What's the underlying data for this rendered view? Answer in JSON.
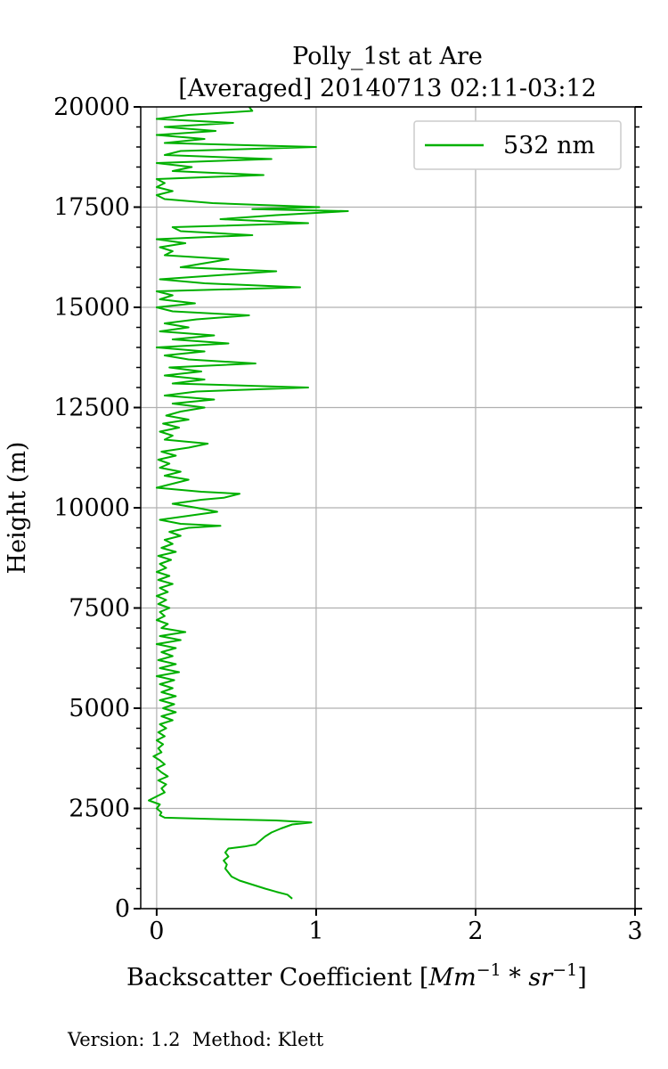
{
  "chart_data": {
    "type": "line",
    "title_line1": "Polly_1st at Are",
    "title_line2": "[Averaged] 20140713 02:11-03:12",
    "xlabel_main": "Backscatter Coefficient [",
    "xlabel_unit_mm": "Mm",
    "xlabel_exp1": "−1",
    "xlabel_star": " * ",
    "xlabel_unit_sr": "sr",
    "xlabel_exp2": "−1",
    "xlabel_close": "]",
    "ylabel": "Height (m)",
    "xlim": [
      -0.1,
      3.0
    ],
    "ylim": [
      0,
      20000
    ],
    "xticks": [
      0,
      1,
      2,
      3
    ],
    "xtick_labels": [
      "0",
      "1",
      "2",
      "3"
    ],
    "yticks": [
      0,
      2500,
      5000,
      7500,
      10000,
      12500,
      15000,
      17500,
      20000
    ],
    "ytick_labels": [
      "0",
      "2500",
      "5000",
      "7500",
      "10000",
      "12500",
      "15000",
      "17500",
      "20000"
    ],
    "grid": true,
    "legend_position": "top-right",
    "series": [
      {
        "name": "532 nm",
        "color": "#00b000",
        "points": [
          [
            0.85,
            250
          ],
          [
            0.82,
            350
          ],
          [
            0.75,
            420
          ],
          [
            0.68,
            500
          ],
          [
            0.6,
            600
          ],
          [
            0.52,
            700
          ],
          [
            0.47,
            800
          ],
          [
            0.45,
            900
          ],
          [
            0.43,
            1000
          ],
          [
            0.44,
            1100
          ],
          [
            0.42,
            1200
          ],
          [
            0.45,
            1300
          ],
          [
            0.43,
            1400
          ],
          [
            0.45,
            1500
          ],
          [
            0.55,
            1550
          ],
          [
            0.62,
            1600
          ],
          [
            0.65,
            1700
          ],
          [
            0.68,
            1800
          ],
          [
            0.72,
            1900
          ],
          [
            0.78,
            2000
          ],
          [
            0.85,
            2100
          ],
          [
            0.97,
            2150
          ],
          [
            0.75,
            2200
          ],
          [
            0.4,
            2230
          ],
          [
            0.05,
            2270
          ],
          [
            0.02,
            2330
          ],
          [
            0.03,
            2400
          ],
          [
            0.0,
            2500
          ],
          [
            0.02,
            2600
          ],
          [
            -0.05,
            2700
          ],
          [
            0.0,
            2800
          ],
          [
            0.05,
            2900
          ],
          [
            0.03,
            3000
          ],
          [
            0.06,
            3100
          ],
          [
            0.01,
            3200
          ],
          [
            0.07,
            3300
          ],
          [
            0.03,
            3400
          ],
          [
            0.0,
            3500
          ],
          [
            0.05,
            3600
          ],
          [
            0.02,
            3700
          ],
          [
            -0.02,
            3800
          ],
          [
            0.03,
            3900
          ],
          [
            0.01,
            4000
          ],
          [
            0.04,
            4100
          ],
          [
            0.0,
            4200
          ],
          [
            0.05,
            4300
          ],
          [
            0.01,
            4400
          ],
          [
            0.06,
            4500
          ],
          [
            0.02,
            4600
          ],
          [
            0.1,
            4700
          ],
          [
            0.03,
            4800
          ],
          [
            0.12,
            4900
          ],
          [
            0.04,
            5000
          ],
          [
            0.11,
            5100
          ],
          [
            0.02,
            5200
          ],
          [
            0.12,
            5300
          ],
          [
            0.03,
            5400
          ],
          [
            0.1,
            5500
          ],
          [
            0.02,
            5600
          ],
          [
            0.11,
            5700
          ],
          [
            0.0,
            5800
          ],
          [
            0.14,
            5900
          ],
          [
            0.02,
            6000
          ],
          [
            0.12,
            6100
          ],
          [
            0.01,
            6200
          ],
          [
            0.1,
            6300
          ],
          [
            0.03,
            6400
          ],
          [
            0.12,
            6500
          ],
          [
            0.0,
            6600
          ],
          [
            0.15,
            6700
          ],
          [
            0.02,
            6800
          ],
          [
            0.18,
            6900
          ],
          [
            0.03,
            7000
          ],
          [
            0.07,
            7100
          ],
          [
            0.0,
            7200
          ],
          [
            0.05,
            7300
          ],
          [
            0.02,
            7400
          ],
          [
            0.08,
            7500
          ],
          [
            0.01,
            7600
          ],
          [
            0.06,
            7700
          ],
          [
            0.0,
            7800
          ],
          [
            0.07,
            7900
          ],
          [
            0.02,
            8000
          ],
          [
            0.1,
            8100
          ],
          [
            0.01,
            8200
          ],
          [
            0.08,
            8300
          ],
          [
            0.0,
            8400
          ],
          [
            0.06,
            8500
          ],
          [
            0.02,
            8600
          ],
          [
            0.09,
            8700
          ],
          [
            0.01,
            8800
          ],
          [
            0.12,
            8900
          ],
          [
            0.03,
            9000
          ],
          [
            0.1,
            9100
          ],
          [
            0.05,
            9200
          ],
          [
            0.15,
            9300
          ],
          [
            0.08,
            9400
          ],
          [
            0.2,
            9500
          ],
          [
            0.4,
            9550
          ],
          [
            0.15,
            9600
          ],
          [
            0.02,
            9700
          ],
          [
            0.2,
            9800
          ],
          [
            0.38,
            9900
          ],
          [
            0.25,
            10000
          ],
          [
            0.1,
            10100
          ],
          [
            0.28,
            10200
          ],
          [
            0.42,
            10250
          ],
          [
            0.52,
            10350
          ],
          [
            0.28,
            10400
          ],
          [
            0.0,
            10500
          ],
          [
            0.1,
            10600
          ],
          [
            0.2,
            10700
          ],
          [
            0.05,
            10800
          ],
          [
            0.15,
            10900
          ],
          [
            0.02,
            11000
          ],
          [
            0.08,
            11100
          ],
          [
            0.01,
            11200
          ],
          [
            0.12,
            11300
          ],
          [
            0.03,
            11400
          ],
          [
            0.2,
            11500
          ],
          [
            0.32,
            11600
          ],
          [
            0.05,
            11700
          ],
          [
            0.1,
            11800
          ],
          [
            0.02,
            11900
          ],
          [
            0.14,
            12000
          ],
          [
            0.04,
            12100
          ],
          [
            0.2,
            12200
          ],
          [
            0.06,
            12300
          ],
          [
            0.15,
            12400
          ],
          [
            0.3,
            12500
          ],
          [
            0.1,
            12600
          ],
          [
            0.36,
            12700
          ],
          [
            0.05,
            12800
          ],
          [
            0.25,
            12900
          ],
          [
            0.95,
            13000
          ],
          [
            0.1,
            13100
          ],
          [
            0.3,
            13200
          ],
          [
            0.05,
            13300
          ],
          [
            0.28,
            13400
          ],
          [
            0.08,
            13500
          ],
          [
            0.62,
            13600
          ],
          [
            0.2,
            13700
          ],
          [
            0.05,
            13800
          ],
          [
            0.3,
            13900
          ],
          [
            0.0,
            14000
          ],
          [
            0.45,
            14100
          ],
          [
            0.1,
            14200
          ],
          [
            0.36,
            14300
          ],
          [
            0.02,
            14400
          ],
          [
            0.2,
            14500
          ],
          [
            0.05,
            14600
          ],
          [
            0.25,
            14700
          ],
          [
            0.58,
            14800
          ],
          [
            0.1,
            14900
          ],
          [
            0.0,
            15000
          ],
          [
            0.24,
            15100
          ],
          [
            0.02,
            15200
          ],
          [
            0.1,
            15300
          ],
          [
            0.0,
            15400
          ],
          [
            0.9,
            15500
          ],
          [
            0.3,
            15600
          ],
          [
            0.02,
            15700
          ],
          [
            0.75,
            15900
          ],
          [
            0.15,
            16000
          ],
          [
            0.3,
            16100
          ],
          [
            0.45,
            16200
          ],
          [
            0.05,
            16300
          ],
          [
            0.1,
            16400
          ],
          [
            0.02,
            16500
          ],
          [
            0.18,
            16600
          ],
          [
            0.0,
            16700
          ],
          [
            0.6,
            16800
          ],
          [
            0.15,
            16900
          ],
          [
            0.1,
            17000
          ],
          [
            0.95,
            17100
          ],
          [
            0.4,
            17200
          ],
          [
            0.75,
            17300
          ],
          [
            1.2,
            17400
          ],
          [
            0.6,
            17450
          ],
          [
            1.02,
            17500
          ],
          [
            0.35,
            17600
          ],
          [
            0.05,
            17700
          ],
          [
            0.0,
            17800
          ],
          [
            0.1,
            17900
          ],
          [
            0.0,
            18000
          ],
          [
            0.05,
            18100
          ],
          [
            0.0,
            18200
          ],
          [
            0.67,
            18300
          ],
          [
            0.1,
            18400
          ],
          [
            0.22,
            18500
          ],
          [
            0.0,
            18600
          ],
          [
            0.72,
            18700
          ],
          [
            0.05,
            18800
          ],
          [
            0.15,
            18900
          ],
          [
            1.0,
            19000
          ],
          [
            0.05,
            19100
          ],
          [
            0.3,
            19200
          ],
          [
            0.0,
            19300
          ],
          [
            0.37,
            19400
          ],
          [
            0.05,
            19500
          ],
          [
            0.48,
            19600
          ],
          [
            0.0,
            19700
          ],
          [
            0.2,
            19800
          ],
          [
            0.6,
            19900
          ],
          [
            0.58,
            20000
          ]
        ]
      }
    ]
  },
  "footer": {
    "text": "Version: 1.2  Method: Klett"
  }
}
